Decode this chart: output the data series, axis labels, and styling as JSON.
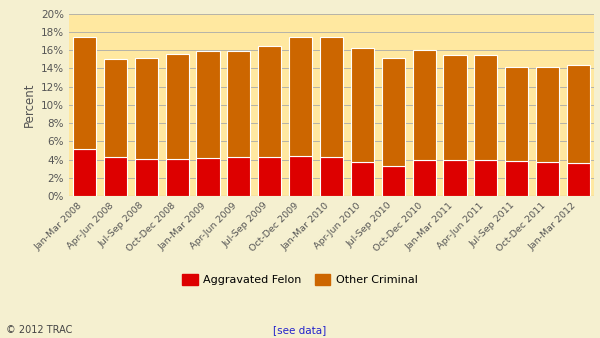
{
  "categories": [
    "Jan-Mar 2008",
    "Apr-Jun 2008",
    "Jul-Sep 2008",
    "Oct-Dec 2008",
    "Jan-Mar 2009",
    "Apr-Jun 2009",
    "Jul-Sep 2009",
    "Oct-Dec 2009",
    "Jan-Mar 2010",
    "Apr-Jun 2010",
    "Jul-Sep 2010",
    "Oct-Dec 2010",
    "Jan-Mar 2011",
    "Apr-Jun 2011",
    "Jul-Sep 2011",
    "Oct-Dec 2011",
    "Jan-Mar 2012"
  ],
  "aggravated_felon": [
    5.1,
    4.3,
    4.1,
    4.1,
    4.2,
    4.3,
    4.3,
    4.4,
    4.3,
    3.7,
    3.3,
    4.0,
    4.0,
    4.0,
    3.8,
    3.7,
    3.6
  ],
  "other_criminal": [
    12.3,
    10.7,
    11.0,
    11.5,
    11.7,
    11.6,
    12.1,
    13.0,
    13.1,
    12.5,
    11.8,
    12.0,
    11.4,
    11.4,
    10.3,
    10.4,
    10.8
  ],
  "agg_color": "#dd0000",
  "other_color": "#cc6600",
  "background_outer": "#f5f0d0",
  "background_plot": "#ffe8a0",
  "grid_color": "#aaaaaa",
  "ylabel": "Percent",
  "ylim": [
    0,
    20
  ],
  "yticks": [
    0,
    2,
    4,
    6,
    8,
    10,
    12,
    14,
    16,
    18,
    20
  ],
  "legend_agg_label": "Aggravated Felon",
  "legend_other_label": "Other Criminal",
  "footer_left": "© 2012 TRAC",
  "footer_link": "[see data]",
  "bar_width": 0.75,
  "bar_edge_color": "#ffffff",
  "bar_linewidth": 0.8
}
